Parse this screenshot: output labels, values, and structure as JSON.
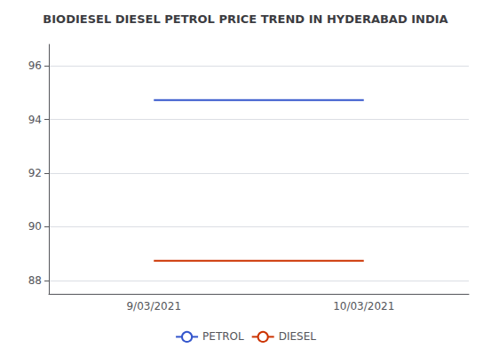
{
  "chart_data": {
    "type": "line",
    "title": "BIODIESEL DIESEL PETROL PRICE TREND IN HYDERABAD INDIA",
    "categories": [
      "9/03/2021",
      "10/03/2021"
    ],
    "series": [
      {
        "name": "PETROL",
        "color": "#3355cc",
        "values": [
          94.72,
          94.72
        ]
      },
      {
        "name": "DIESEL",
        "color": "#cc3300",
        "values": [
          88.73,
          88.73
        ]
      }
    ],
    "ylim": [
      87.5,
      96.8
    ],
    "yticks": [
      88,
      90,
      92,
      94,
      96
    ],
    "grid": true,
    "legend": "bottom"
  }
}
